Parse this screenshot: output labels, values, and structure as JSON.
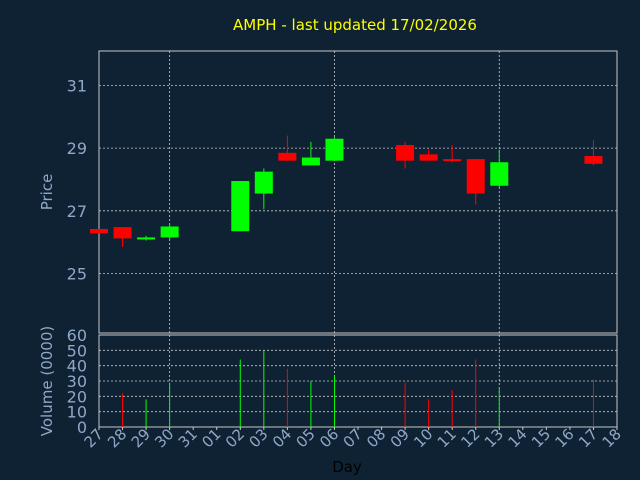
{
  "chart_data": {
    "type": "candlestick",
    "title": "AMPH - last updated 17/02/2026",
    "xlabel": "Day",
    "colors": {
      "background": "#0f2233",
      "up": "#00ff00",
      "down": "#ff0000",
      "text": "#8fa8c8",
      "title": "#ffff00",
      "grid": "#c8c8c8"
    },
    "x_tick_labels": [
      "27",
      "28",
      "29",
      "30",
      "31",
      "01",
      "02",
      "03",
      "04",
      "05",
      "06",
      "07",
      "08",
      "09",
      "10",
      "11",
      "12",
      "13",
      "14",
      "15",
      "16",
      "17",
      "18"
    ],
    "price_panel": {
      "ylabel": "Price",
      "ylim": [
        23.1,
        32.1
      ],
      "y_ticks": [
        25,
        27,
        29,
        31
      ],
      "grid": true
    },
    "volume_panel": {
      "ylabel": "Volume (0000)",
      "ylim": [
        0,
        60
      ],
      "y_ticks": [
        0,
        10,
        20,
        30,
        40,
        50,
        60
      ],
      "grid": true
    },
    "candles": [
      {
        "day": "27",
        "open": 26.42,
        "high": 26.42,
        "low": 26.28,
        "close": 26.28,
        "volume": 0
      },
      {
        "day": "28",
        "open": 26.48,
        "high": 26.48,
        "low": 25.85,
        "close": 26.12,
        "volume": 22
      },
      {
        "day": "29",
        "open": 26.1,
        "high": 26.2,
        "low": 26.05,
        "close": 26.15,
        "volume": 18
      },
      {
        "day": "30",
        "open": 26.15,
        "high": 26.6,
        "low": 26.05,
        "close": 26.5,
        "volume": 29
      },
      {
        "day": "02",
        "open": 26.35,
        "high": 27.95,
        "low": 26.35,
        "close": 27.95,
        "volume": 44
      },
      {
        "day": "03",
        "open": 27.55,
        "high": 28.35,
        "low": 27.05,
        "close": 28.25,
        "volume": 50
      },
      {
        "day": "04",
        "open": 28.85,
        "high": 29.4,
        "low": 28.6,
        "close": 28.6,
        "volume": 38
      },
      {
        "day": "05",
        "open": 28.45,
        "high": 29.2,
        "low": 28.45,
        "close": 28.7,
        "volume": 30
      },
      {
        "day": "06",
        "open": 28.6,
        "high": 29.35,
        "low": 28.6,
        "close": 29.3,
        "volume": 34
      },
      {
        "day": "09",
        "open": 29.1,
        "high": 29.2,
        "low": 28.35,
        "close": 28.6,
        "volume": 29
      },
      {
        "day": "10",
        "open": 28.8,
        "high": 28.95,
        "low": 28.6,
        "close": 28.6,
        "volume": 18
      },
      {
        "day": "11",
        "open": 28.65,
        "high": 29.1,
        "low": 28.55,
        "close": 28.6,
        "volume": 24
      },
      {
        "day": "12",
        "open": 28.65,
        "high": 28.65,
        "low": 27.2,
        "close": 27.55,
        "volume": 44
      },
      {
        "day": "13",
        "open": 27.8,
        "high": 28.95,
        "low": 27.75,
        "close": 28.55,
        "volume": 26
      },
      {
        "day": "17",
        "open": 28.75,
        "high": 29.25,
        "low": 28.45,
        "close": 28.5,
        "volume": 31
      }
    ]
  }
}
